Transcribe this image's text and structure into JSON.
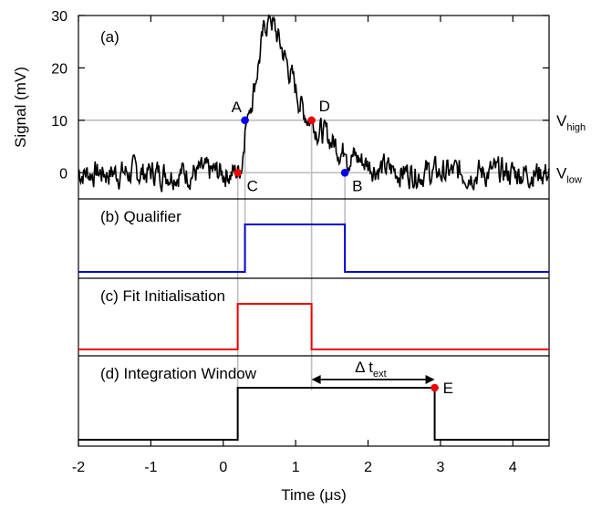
{
  "chart_data": {
    "type": "line",
    "xlabel": "Time (μs)",
    "xlim": [
      -2,
      4.5
    ],
    "x_ticks": [
      "-2",
      "-1",
      "0",
      "1",
      "2",
      "3",
      "4"
    ],
    "panels": [
      {
        "id": "a",
        "label": "(a)",
        "ylabel": "Signal (mV)",
        "ylim": [
          -5,
          30
        ],
        "y_ticks": [
          "0",
          "10",
          "20",
          "30"
        ],
        "thresholds": {
          "V_high": 10,
          "V_low": 0
        },
        "threshold_labels": {
          "high": {
            "base": "V",
            "sub": "high"
          },
          "low": {
            "base": "V",
            "sub": "low"
          }
        },
        "signal_color": "#000000",
        "signal_shape": {
          "x": [
            -2,
            0.2,
            0.26,
            0.3,
            0.35,
            0.42,
            0.5,
            0.58,
            0.65,
            0.72,
            0.8,
            0.9,
            1.0,
            1.1,
            1.2,
            1.3,
            1.42,
            1.55,
            1.68,
            1.8,
            1.95,
            2.1,
            2.3,
            2.6,
            4.5
          ],
          "y": [
            0,
            0,
            2,
            8,
            12,
            16,
            22,
            28,
            30,
            27,
            24,
            20,
            16,
            12,
            10,
            8.5,
            7,
            5.5,
            3.5,
            3,
            2,
            1,
            0.5,
            0,
            0
          ]
        },
        "points": [
          {
            "name": "A",
            "x": 0.3,
            "y": 10,
            "color": "#0000ee"
          },
          {
            "name": "B",
            "x": 1.68,
            "y": 0,
            "color": "#0000ee"
          },
          {
            "name": "C",
            "x": 0.2,
            "y": 0,
            "color": "#ee0000"
          },
          {
            "name": "D",
            "x": 1.22,
            "y": 10,
            "color": "#ee0000"
          }
        ]
      },
      {
        "id": "b",
        "label": "(b) Qualifier",
        "color": "#0000cc",
        "high_from": 0.3,
        "high_to": 1.68
      },
      {
        "id": "c",
        "label": "(c) Fit Initialisation",
        "color": "#ee0000",
        "high_from": 0.2,
        "high_to": 1.22
      },
      {
        "id": "d",
        "label": "(d) Integration Window",
        "color": "#000000",
        "high_from": 0.2,
        "high_to": 2.92,
        "point": {
          "name": "E",
          "x": 2.92,
          "color": "#ee0000"
        },
        "interval": {
          "label": "Δ t",
          "sub": "ext",
          "from": 1.22,
          "to": 2.92
        }
      }
    ]
  }
}
